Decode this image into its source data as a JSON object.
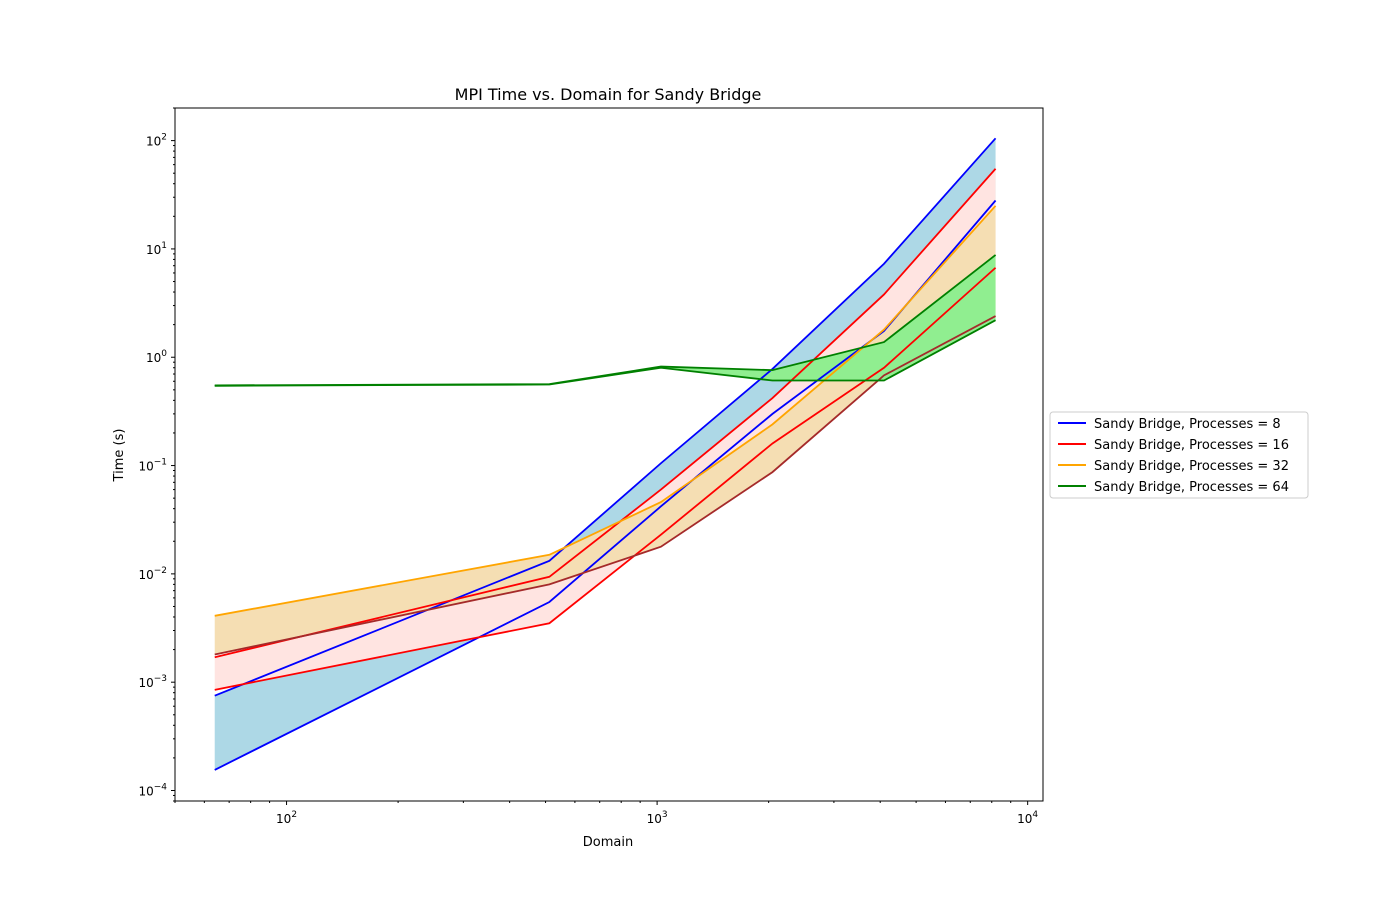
{
  "chart_data": {
    "type": "line",
    "title": "MPI Time vs. Domain for Sandy Bridge",
    "xlabel": "Domain",
    "ylabel": "Time (s)",
    "xscale": "log",
    "yscale": "log",
    "xlim": [
      50,
      11000
    ],
    "ylim": [
      8e-05,
      200
    ],
    "x_ticks": [
      {
        "value": 100,
        "base": "10",
        "exp": "2"
      },
      {
        "value": 1000,
        "base": "10",
        "exp": "3"
      },
      {
        "value": 10000,
        "base": "10",
        "exp": "4"
      }
    ],
    "y_ticks": [
      {
        "value": 0.0001,
        "base": "10",
        "exp": "−4"
      },
      {
        "value": 0.001,
        "base": "10",
        "exp": "−3"
      },
      {
        "value": 0.01,
        "base": "10",
        "exp": "−2"
      },
      {
        "value": 0.1,
        "base": "10",
        "exp": "−1"
      },
      {
        "value": 1,
        "base": "10",
        "exp": "0"
      },
      {
        "value": 10,
        "base": "10",
        "exp": "1"
      },
      {
        "value": 100,
        "base": "10",
        "exp": "2"
      }
    ],
    "x": [
      64,
      512,
      1024,
      2048,
      4096,
      8192
    ],
    "legend_position": "right",
    "grid": false,
    "series": [
      {
        "name": "Sandy Bridge, Processes = 8",
        "color": "#0000ff",
        "fill_color": "#add8e6",
        "upper": [
          0.00075,
          0.0132,
          0.105,
          0.78,
          7.3,
          105
        ],
        "lower": [
          0.000155,
          0.0055,
          0.042,
          0.3,
          1.75,
          28
        ]
      },
      {
        "name": "Sandy Bridge, Processes = 16",
        "color": "#ff0000",
        "fill_color": "#ffe4e1",
        "upper": [
          0.0017,
          0.0094,
          0.06,
          0.42,
          3.8,
          55
        ],
        "lower": [
          0.00085,
          0.0035,
          0.023,
          0.16,
          0.8,
          6.7
        ]
      },
      {
        "name": "Sandy Bridge, Processes = 32",
        "color": "#ffa500",
        "lower_color": "#a52a2a",
        "fill_color": "#f5deb3",
        "upper": [
          0.0041,
          0.015,
          0.046,
          0.24,
          1.8,
          25
        ],
        "lower": [
          0.0018,
          0.008,
          0.0178,
          0.087,
          0.68,
          2.4
        ]
      },
      {
        "name": "Sandy Bridge, Processes = 64",
        "color": "#008000",
        "fill_color": "#90ee90",
        "upper": [
          0.55,
          0.565,
          0.82,
          0.76,
          1.38,
          8.8
        ],
        "lower": [
          0.545,
          0.56,
          0.8,
          0.61,
          0.61,
          2.2
        ]
      }
    ]
  }
}
